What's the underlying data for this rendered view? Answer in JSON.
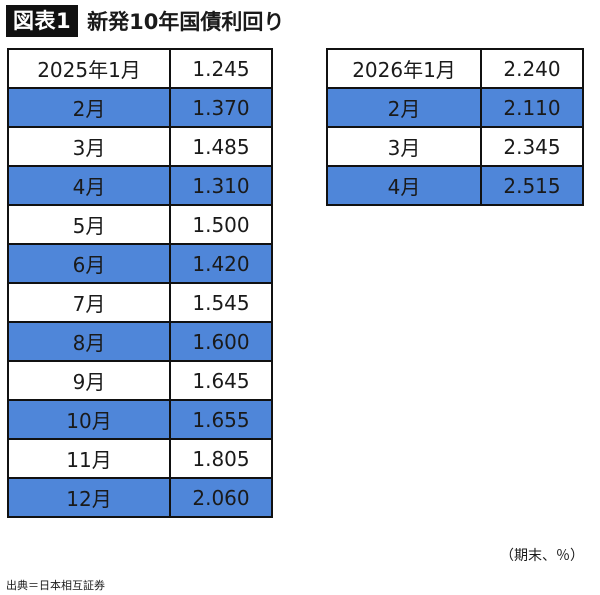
{
  "header": {
    "badge": "図表1",
    "title": "新発10年国債利回り"
  },
  "table_2025": [
    {
      "month": "2025年1月",
      "value": "1.245",
      "shade": "w"
    },
    {
      "month": "2月",
      "value": "1.370",
      "shade": "b"
    },
    {
      "month": "3月",
      "value": "1.485",
      "shade": "w"
    },
    {
      "month": "4月",
      "value": "1.310",
      "shade": "b"
    },
    {
      "month": "5月",
      "value": "1.500",
      "shade": "w"
    },
    {
      "month": "6月",
      "value": "1.420",
      "shade": "b"
    },
    {
      "month": "7月",
      "value": "1.545",
      "shade": "w"
    },
    {
      "month": "8月",
      "value": "1.600",
      "shade": "b"
    },
    {
      "month": "9月",
      "value": "1.645",
      "shade": "w"
    },
    {
      "month": "10月",
      "value": "1.655",
      "shade": "b"
    },
    {
      "month": "11月",
      "value": "1.805",
      "shade": "w"
    },
    {
      "month": "12月",
      "value": "2.060",
      "shade": "b"
    }
  ],
  "table_2026": [
    {
      "month": "2026年1月",
      "value": "2.240",
      "shade": "w"
    },
    {
      "month": "2月",
      "value": "2.110",
      "shade": "b"
    },
    {
      "month": "3月",
      "value": "2.345",
      "shade": "w"
    },
    {
      "month": "4月",
      "value": "2.515",
      "shade": "b"
    }
  ],
  "colors": {
    "row_highlight": "#4f86d9",
    "row_plain": "#ffffff",
    "border": "#111111"
  },
  "unit_note": "（期末、％）",
  "source": "出典＝日本相互証券"
}
